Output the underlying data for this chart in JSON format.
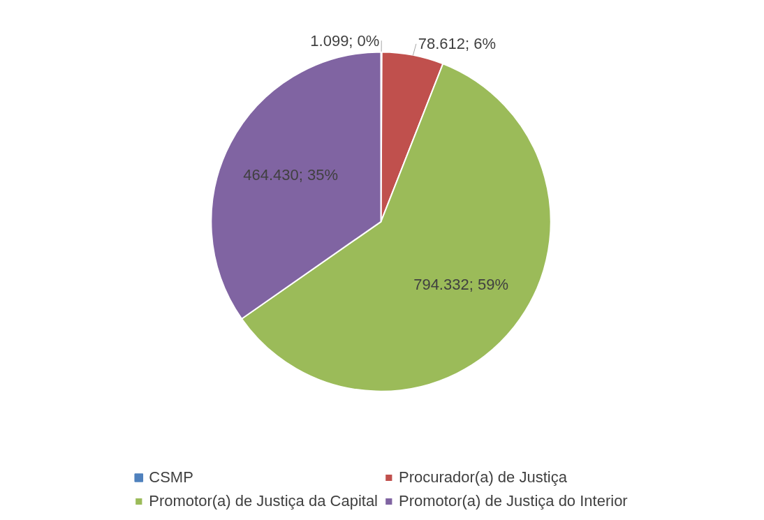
{
  "chart_data": {
    "type": "pie",
    "categories": [
      "CSMP",
      "Procurador(a) de Justiça",
      "Promotor(a) de Justiça da Capital",
      "Promotor(a) de Justiça do Interior"
    ],
    "values": [
      1099,
      78612,
      794332,
      464430
    ],
    "colors": [
      "#4f81bd",
      "#c0504d",
      "#9bbb59",
      "#8064a2"
    ],
    "value_labels": [
      "1.099; 0%",
      "78.612; 6%",
      "794.332; 59%",
      "464.430; 35%"
    ],
    "legend": "bottom"
  }
}
